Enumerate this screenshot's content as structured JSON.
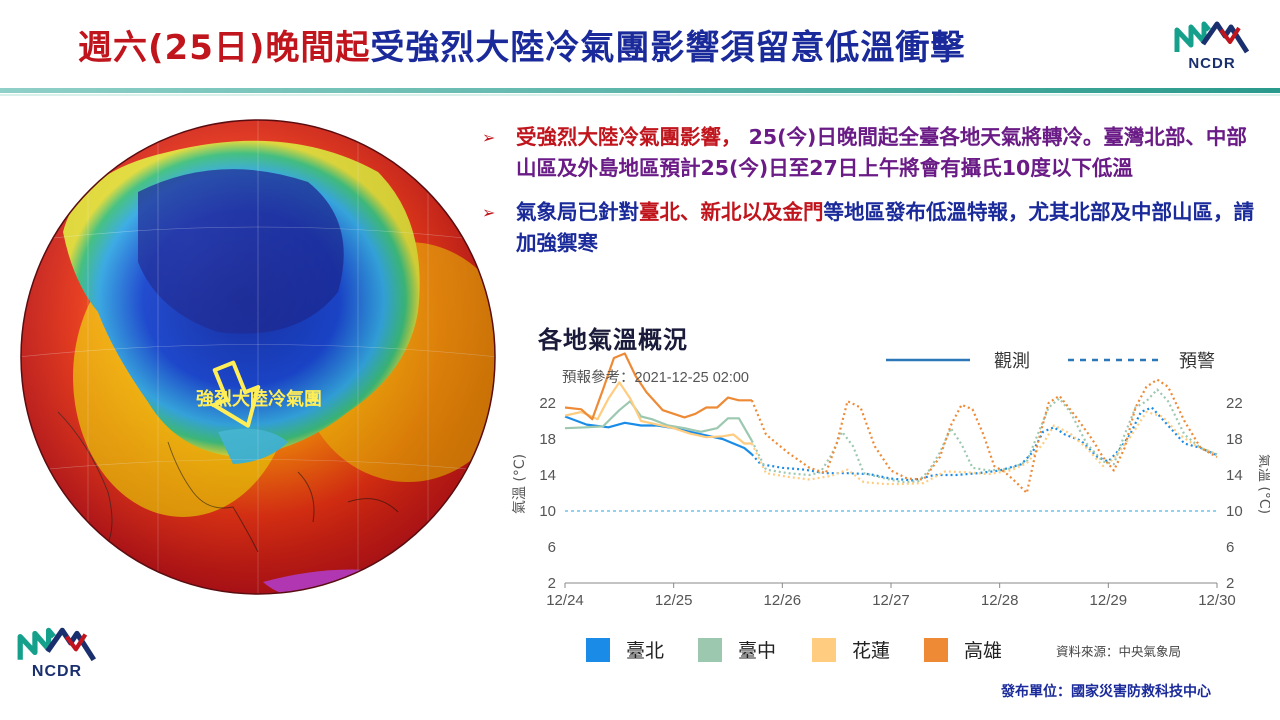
{
  "header": {
    "title_red": "週六(25日)晚間起",
    "title_blue": "受強烈大陸冷氣團影響須留意低溫衝擊",
    "logo_text": "NCDR"
  },
  "map": {
    "label": "強烈大陸冷氣團",
    "arrow_color": "#ffee58"
  },
  "bullets": [
    {
      "segments": [
        {
          "text": "受強烈大陸冷氣團影響，",
          "color": "red"
        },
        {
          "text": " 25(今)日晚間起全臺各地天氣將轉冷。臺灣北部、中部山區及外島地區預計25(今)日至27日上午將會有攝氏10度以下低溫",
          "color": "purple"
        }
      ]
    },
    {
      "segments": [
        {
          "text": "氣象局已針對",
          "color": "blue"
        },
        {
          "text": "臺北、新北以及金門",
          "color": "red"
        },
        {
          "text": "等地區發布低溫特報，尤其北部及中部山區，請加強禦寒",
          "color": "blue"
        }
      ]
    }
  ],
  "footer": {
    "logo_text": "NCDR",
    "source": "資料來源：中央氣象局",
    "publisher": "發布單位：國家災害防救科技中心"
  },
  "colors": {
    "title_red": "#c0151c",
    "title_blue": "#1a2a9a",
    "taipei": "#1a8ce8",
    "taichung": "#9cc8b0",
    "hualien": "#ffcc80",
    "kaohsiung": "#ee8a36"
  },
  "chart_data": {
    "type": "line",
    "title": "各地氣溫概況",
    "reference_time": "預報參考：2021-12-25 02:00",
    "ylabel": "氣溫 (°C)",
    "ylim": [
      2,
      24
    ],
    "yticks": [
      2,
      6,
      10,
      14,
      18,
      22
    ],
    "xlim": [
      0,
      6
    ],
    "xtick_labels": [
      "12/24",
      "12/25",
      "12/26",
      "12/27",
      "12/28",
      "12/29",
      "12/30"
    ],
    "threshold": 10,
    "grid": false,
    "style_legend": [
      {
        "label": "觀測",
        "style": "solid"
      },
      {
        "label": "預警",
        "style": "dashed"
      }
    ],
    "series": [
      {
        "name": "臺北",
        "color": "#1a8ce8",
        "observed": [
          [
            0,
            20.5
          ],
          [
            0.2,
            19.6
          ],
          [
            0.4,
            19.3
          ],
          [
            0.55,
            19.8
          ],
          [
            0.7,
            19.5
          ],
          [
            0.85,
            19.5
          ],
          [
            1.0,
            19.2
          ],
          [
            1.15,
            18.8
          ],
          [
            1.3,
            18.4
          ],
          [
            1.45,
            18
          ],
          [
            1.55,
            17.5
          ],
          [
            1.65,
            17
          ],
          [
            1.72,
            16.3
          ]
        ],
        "forecast": [
          [
            1.72,
            16.3
          ],
          [
            1.8,
            15.2
          ],
          [
            2.0,
            14.8
          ],
          [
            2.2,
            14.6
          ],
          [
            2.4,
            14.2
          ],
          [
            2.6,
            14.2
          ],
          [
            2.8,
            14.1
          ],
          [
            3.0,
            13.6
          ],
          [
            3.2,
            13.4
          ],
          [
            3.4,
            14.0
          ],
          [
            3.6,
            14.0
          ],
          [
            3.8,
            14.2
          ],
          [
            4.0,
            14.5
          ],
          [
            4.2,
            15.2
          ],
          [
            4.3,
            16.5
          ],
          [
            4.4,
            18.8
          ],
          [
            4.5,
            19.3
          ],
          [
            4.6,
            18.5
          ],
          [
            4.75,
            17.8
          ],
          [
            4.9,
            16
          ],
          [
            5.0,
            15.5
          ],
          [
            5.1,
            16.8
          ],
          [
            5.2,
            18.5
          ],
          [
            5.3,
            21
          ],
          [
            5.4,
            21.5
          ],
          [
            5.55,
            19.5
          ],
          [
            5.7,
            17.5
          ],
          [
            5.85,
            17.0
          ],
          [
            6.0,
            16.2
          ]
        ]
      },
      {
        "name": "臺中",
        "color": "#9cc8b0",
        "observed": [
          [
            0,
            19.2
          ],
          [
            0.2,
            19.3
          ],
          [
            0.35,
            19.4
          ],
          [
            0.5,
            21.2
          ],
          [
            0.6,
            22.2
          ],
          [
            0.7,
            20.5
          ],
          [
            0.8,
            20.2
          ],
          [
            0.95,
            19.5
          ],
          [
            1.1,
            19.2
          ],
          [
            1.25,
            18.8
          ],
          [
            1.4,
            19.2
          ],
          [
            1.5,
            20.3
          ],
          [
            1.6,
            20.3
          ],
          [
            1.72,
            17.8
          ]
        ],
        "forecast": [
          [
            1.72,
            17.8
          ],
          [
            1.85,
            14.6
          ],
          [
            2.05,
            14.2
          ],
          [
            2.25,
            14.0
          ],
          [
            2.35,
            14.3
          ],
          [
            2.45,
            16.2
          ],
          [
            2.55,
            18.8
          ],
          [
            2.65,
            17.2
          ],
          [
            2.75,
            14.2
          ],
          [
            2.95,
            13.6
          ],
          [
            3.1,
            13.2
          ],
          [
            3.25,
            13.3
          ],
          [
            3.35,
            14.5
          ],
          [
            3.45,
            16.5
          ],
          [
            3.55,
            19.2
          ],
          [
            3.65,
            17.4
          ],
          [
            3.75,
            14.8
          ],
          [
            3.9,
            14.5
          ],
          [
            4.1,
            14.7
          ],
          [
            4.25,
            15.5
          ],
          [
            4.35,
            18.5
          ],
          [
            4.45,
            21.5
          ],
          [
            4.55,
            22.5
          ],
          [
            4.65,
            21
          ],
          [
            4.8,
            17.5
          ],
          [
            4.95,
            15.5
          ],
          [
            5.05,
            15.2
          ],
          [
            5.15,
            18.5
          ],
          [
            5.25,
            21.5
          ],
          [
            5.35,
            22.2
          ],
          [
            5.45,
            23.5
          ],
          [
            5.55,
            22.2
          ],
          [
            5.7,
            18.5
          ],
          [
            5.85,
            17
          ],
          [
            6.0,
            16.3
          ]
        ]
      },
      {
        "name": "花蓮",
        "color": "#ffcc80",
        "observed": [
          [
            0,
            20.6
          ],
          [
            0.15,
            21
          ],
          [
            0.3,
            20.2
          ],
          [
            0.4,
            22.5
          ],
          [
            0.5,
            24.3
          ],
          [
            0.6,
            22.5
          ],
          [
            0.7,
            20
          ],
          [
            0.85,
            19.6
          ],
          [
            1.0,
            19.2
          ],
          [
            1.15,
            18.6
          ],
          [
            1.3,
            18.2
          ],
          [
            1.45,
            18.3
          ],
          [
            1.55,
            18.5
          ],
          [
            1.65,
            17.5
          ],
          [
            1.72,
            17.5
          ]
        ],
        "forecast": [
          [
            1.72,
            17.5
          ],
          [
            1.85,
            14.2
          ],
          [
            2.05,
            13.8
          ],
          [
            2.25,
            13.5
          ],
          [
            2.45,
            13.9
          ],
          [
            2.6,
            14.6
          ],
          [
            2.75,
            13.2
          ],
          [
            2.95,
            13.0
          ],
          [
            3.1,
            13.0
          ],
          [
            3.3,
            13.1
          ],
          [
            3.5,
            14.4
          ],
          [
            3.7,
            14.3
          ],
          [
            3.9,
            14.1
          ],
          [
            4.1,
            14.5
          ],
          [
            4.25,
            15.3
          ],
          [
            4.4,
            17.5
          ],
          [
            4.5,
            19.5
          ],
          [
            4.65,
            18.6
          ],
          [
            4.8,
            17
          ],
          [
            4.95,
            15
          ],
          [
            5.05,
            15.8
          ],
          [
            5.2,
            18.2
          ],
          [
            5.35,
            21
          ],
          [
            5.5,
            20.5
          ],
          [
            5.65,
            18.5
          ],
          [
            5.8,
            17.3
          ],
          [
            6.0,
            16.3
          ]
        ]
      },
      {
        "name": "高雄",
        "color": "#ee8a36",
        "observed": [
          [
            0,
            21.5
          ],
          [
            0.15,
            21.3
          ],
          [
            0.25,
            20.2
          ],
          [
            0.35,
            23.5
          ],
          [
            0.45,
            27
          ],
          [
            0.55,
            27.5
          ],
          [
            0.65,
            25
          ],
          [
            0.75,
            23.2
          ],
          [
            0.9,
            21.2
          ],
          [
            1.0,
            20.8
          ],
          [
            1.1,
            20.4
          ],
          [
            1.2,
            20.8
          ],
          [
            1.3,
            21.5
          ],
          [
            1.4,
            21.5
          ],
          [
            1.5,
            22.6
          ],
          [
            1.6,
            22.3
          ],
          [
            1.72,
            22.3
          ]
        ],
        "forecast": [
          [
            1.72,
            22.3
          ],
          [
            1.85,
            18.5
          ],
          [
            2.05,
            16.5
          ],
          [
            2.25,
            14.8
          ],
          [
            2.4,
            14.2
          ],
          [
            2.5,
            17.5
          ],
          [
            2.6,
            22.2
          ],
          [
            2.72,
            21.5
          ],
          [
            2.85,
            17.2
          ],
          [
            3.0,
            14.5
          ],
          [
            3.15,
            13.6
          ],
          [
            3.3,
            13.5
          ],
          [
            3.45,
            16
          ],
          [
            3.55,
            19.5
          ],
          [
            3.65,
            21.8
          ],
          [
            3.75,
            21.3
          ],
          [
            3.85,
            18.5
          ],
          [
            3.95,
            15
          ],
          [
            4.05,
            14.3
          ],
          [
            4.15,
            13.2
          ],
          [
            4.25,
            12
          ],
          [
            4.35,
            17.5
          ],
          [
            4.45,
            22
          ],
          [
            4.55,
            22.8
          ],
          [
            4.7,
            20.5
          ],
          [
            4.85,
            18
          ],
          [
            4.95,
            16
          ],
          [
            5.05,
            14.5
          ],
          [
            5.15,
            17
          ],
          [
            5.25,
            21.5
          ],
          [
            5.35,
            23.8
          ],
          [
            5.45,
            24.6
          ],
          [
            5.55,
            23.8
          ],
          [
            5.7,
            20
          ],
          [
            5.85,
            17
          ],
          [
            6.0,
            16.0
          ]
        ]
      }
    ]
  }
}
